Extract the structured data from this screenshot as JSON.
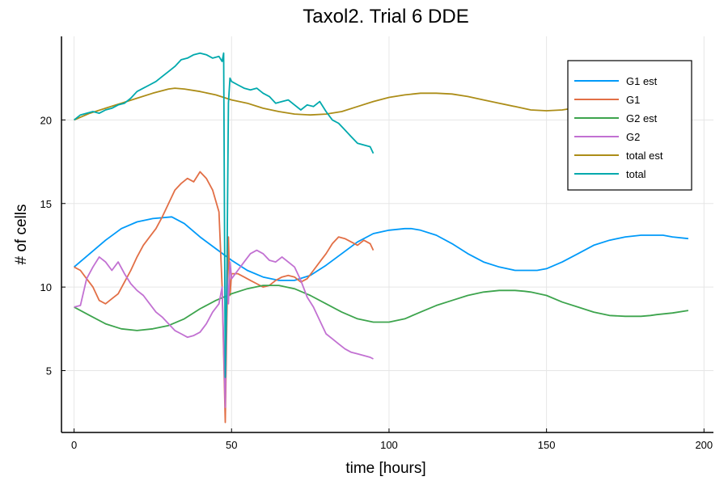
{
  "chart_data": {
    "type": "line",
    "title": "Taxol2. Trial 6 DDE",
    "xlabel": "time [hours]",
    "ylabel": "# of cells",
    "xlim": [
      -4,
      203
    ],
    "ylim": [
      1.3,
      25
    ],
    "xticks": [
      0,
      50,
      100,
      150,
      200
    ],
    "yticks": [
      5,
      10,
      15,
      20
    ],
    "grid": true,
    "legend_position": "top-right",
    "series": [
      {
        "name": "G1 est",
        "color": "#009af9",
        "x": [
          0,
          5,
          10,
          15,
          20,
          25,
          31,
          35,
          40,
          45,
          50,
          55,
          60,
          65,
          70,
          75,
          80,
          85,
          90,
          95,
          100,
          105,
          107,
          110,
          115,
          120,
          125,
          130,
          135,
          140,
          145,
          147,
          150,
          155,
          160,
          165,
          170,
          175,
          180,
          185,
          187,
          190,
          195
        ],
        "y": [
          11.2,
          12.0,
          12.8,
          13.5,
          13.9,
          14.1,
          14.2,
          13.8,
          13.0,
          12.3,
          11.6,
          11.0,
          10.6,
          10.4,
          10.4,
          10.7,
          11.3,
          12.0,
          12.7,
          13.2,
          13.4,
          13.5,
          13.5,
          13.4,
          13.1,
          12.6,
          12.0,
          11.5,
          11.2,
          11.0,
          11.0,
          11.0,
          11.1,
          11.5,
          12.0,
          12.5,
          12.8,
          13.0,
          13.1,
          13.1,
          13.1,
          13.0,
          12.9
        ]
      },
      {
        "name": "G1",
        "color": "#e26f46",
        "x": [
          0,
          2,
          4,
          6,
          8,
          10,
          12,
          14,
          16,
          18,
          20,
          22,
          24,
          26,
          28,
          30,
          32,
          34,
          36,
          38,
          40,
          42,
          44,
          46,
          47,
          48,
          48.5,
          49,
          49.5,
          50,
          52,
          54,
          56,
          58,
          60,
          62,
          64,
          66,
          68,
          70,
          72,
          74,
          76,
          78,
          80,
          82,
          84,
          86,
          88,
          90,
          92,
          94,
          95
        ],
        "y": [
          11.2,
          11.0,
          10.5,
          10.0,
          9.2,
          9.0,
          9.3,
          9.6,
          10.3,
          11.0,
          11.8,
          12.5,
          13.0,
          13.5,
          14.2,
          15.0,
          15.8,
          16.2,
          16.5,
          16.3,
          16.9,
          16.5,
          15.8,
          14.5,
          10.0,
          1.9,
          8.0,
          13.0,
          9.5,
          10.8,
          10.8,
          10.6,
          10.4,
          10.2,
          10.0,
          10.1,
          10.4,
          10.6,
          10.7,
          10.6,
          10.3,
          10.5,
          11.0,
          11.5,
          12.0,
          12.6,
          13.0,
          12.9,
          12.7,
          12.5,
          12.8,
          12.6,
          12.2
        ]
      },
      {
        "name": "G2 est",
        "color": "#3da44d",
        "x": [
          0,
          5,
          10,
          15,
          20,
          25,
          30,
          35,
          40,
          45,
          50,
          55,
          60,
          65,
          70,
          75,
          80,
          85,
          90,
          95,
          100,
          105,
          110,
          115,
          120,
          125,
          130,
          135,
          140,
          143,
          145,
          150,
          155,
          160,
          165,
          170,
          175,
          180,
          183,
          185,
          190,
          195
        ],
        "y": [
          8.8,
          8.3,
          7.8,
          7.5,
          7.4,
          7.5,
          7.7,
          8.1,
          8.7,
          9.2,
          9.6,
          9.9,
          10.1,
          10.1,
          9.9,
          9.5,
          9.0,
          8.5,
          8.1,
          7.9,
          7.9,
          8.1,
          8.5,
          8.9,
          9.2,
          9.5,
          9.7,
          9.8,
          9.8,
          9.75,
          9.7,
          9.5,
          9.1,
          8.8,
          8.5,
          8.3,
          8.25,
          8.25,
          8.3,
          8.35,
          8.45,
          8.6
        ]
      },
      {
        "name": "G2",
        "color": "#c271d2",
        "x": [
          0,
          2,
          4,
          6,
          8,
          10,
          12,
          14,
          16,
          18,
          20,
          22,
          24,
          26,
          28,
          30,
          32,
          34,
          36,
          38,
          40,
          42,
          44,
          46,
          47,
          48,
          48.5,
          49,
          49.5,
          50,
          52,
          54,
          56,
          58,
          60,
          62,
          64,
          66,
          68,
          70,
          72,
          74,
          76,
          78,
          80,
          82,
          84,
          86,
          88,
          90,
          92,
          94,
          95
        ],
        "y": [
          8.8,
          8.9,
          10.5,
          11.2,
          11.8,
          11.5,
          11.0,
          11.5,
          10.8,
          10.2,
          9.8,
          9.5,
          9.0,
          8.5,
          8.2,
          7.8,
          7.4,
          7.2,
          7.0,
          7.1,
          7.3,
          7.8,
          8.5,
          9.0,
          10.0,
          2.8,
          11.0,
          9.0,
          11.5,
          10.5,
          11.0,
          11.5,
          12.0,
          12.2,
          12.0,
          11.6,
          11.5,
          11.8,
          11.5,
          11.2,
          10.4,
          9.4,
          8.8,
          8.0,
          7.2,
          6.9,
          6.6,
          6.3,
          6.1,
          6.0,
          5.9,
          5.8,
          5.7
        ]
      },
      {
        "name": "total est",
        "color": "#ac8d18",
        "x": [
          0,
          5,
          10,
          15,
          20,
          25,
          30,
          32,
          35,
          40,
          45,
          50,
          55,
          60,
          65,
          70,
          75,
          80,
          85,
          90,
          95,
          100,
          105,
          110,
          115,
          120,
          125,
          130,
          135,
          140,
          145,
          150,
          155,
          160,
          165,
          170,
          175,
          180,
          185,
          190,
          195
        ],
        "y": [
          20.0,
          20.4,
          20.7,
          21.0,
          21.3,
          21.6,
          21.85,
          21.9,
          21.85,
          21.7,
          21.5,
          21.2,
          21.0,
          20.7,
          20.5,
          20.35,
          20.3,
          20.35,
          20.5,
          20.8,
          21.1,
          21.35,
          21.5,
          21.6,
          21.6,
          21.55,
          21.4,
          21.2,
          21.0,
          20.8,
          20.6,
          20.55,
          20.6,
          20.75,
          20.9,
          21.05,
          21.2,
          21.35,
          21.45,
          21.5,
          21.5
        ]
      },
      {
        "name": "total",
        "color": "#00a9ad",
        "x": [
          0,
          2,
          4,
          6,
          8,
          10,
          12,
          14,
          16,
          18,
          20,
          22,
          24,
          26,
          28,
          30,
          32,
          34,
          36,
          38,
          40,
          42,
          44,
          46,
          47,
          47.5,
          48,
          48.5,
          49,
          49.5,
          50,
          52,
          54,
          56,
          58,
          60,
          62,
          64,
          66,
          68,
          70,
          72,
          74,
          76,
          78,
          80,
          82,
          84,
          86,
          88,
          90,
          92,
          94,
          95
        ],
        "y": [
          20.0,
          20.3,
          20.4,
          20.5,
          20.4,
          20.6,
          20.7,
          20.9,
          21.0,
          21.3,
          21.7,
          21.9,
          22.1,
          22.3,
          22.6,
          22.9,
          23.2,
          23.6,
          23.7,
          23.9,
          24.0,
          23.9,
          23.7,
          23.8,
          23.5,
          24.0,
          4.6,
          10.0,
          21.0,
          22.5,
          22.3,
          22.1,
          21.9,
          21.8,
          21.9,
          21.6,
          21.4,
          21.0,
          21.1,
          21.2,
          20.9,
          20.6,
          20.9,
          20.8,
          21.1,
          20.5,
          20.0,
          19.8,
          19.4,
          19.0,
          18.6,
          18.5,
          18.4,
          18.0
        ]
      }
    ]
  }
}
